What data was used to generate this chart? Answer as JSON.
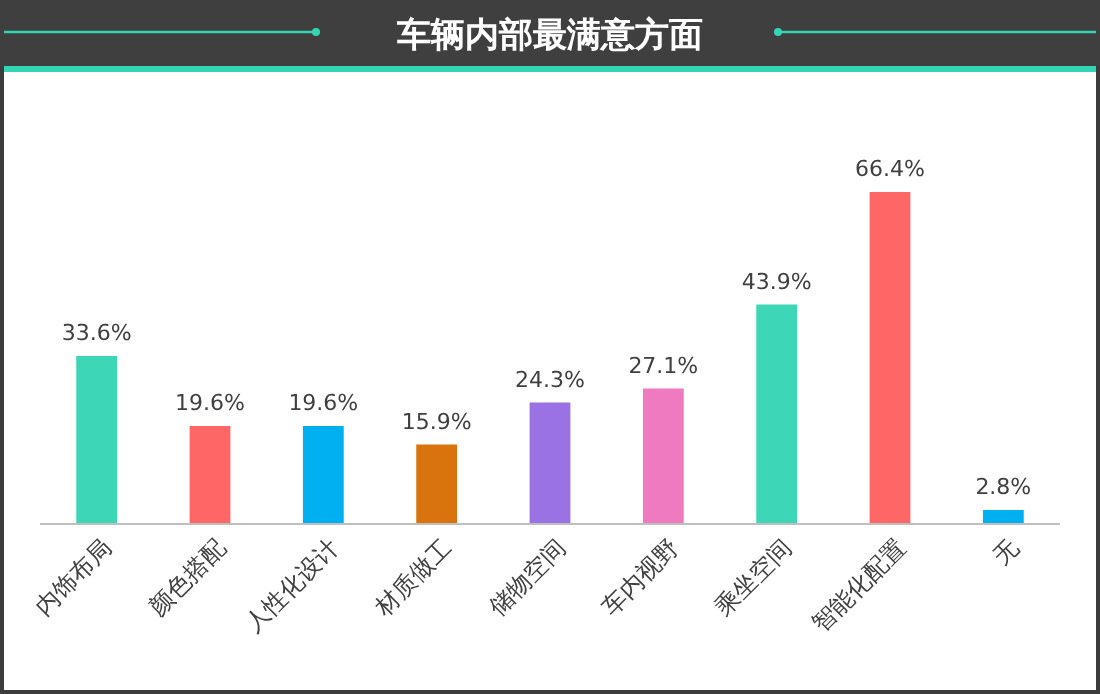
{
  "chart_data": {
    "type": "bar",
    "title": "车辆内部最满意方面",
    "categories": [
      "内饰布局",
      "颜色搭配",
      "人性化设计",
      "材质做工",
      "储物空间",
      "车内视野",
      "乘坐空间",
      "智能化配置",
      "无"
    ],
    "values": [
      33.6,
      19.6,
      19.6,
      15.9,
      24.3,
      27.1,
      43.9,
      66.4,
      2.8
    ],
    "colors": [
      "#3dd6b6",
      "#ff6666",
      "#00b0f0",
      "#d9730d",
      "#9b72e3",
      "#ef7ac0",
      "#3dd6b6",
      "#ff6666",
      "#00b0f0"
    ],
    "value_labels": [
      "33.6%",
      "19.6%",
      "19.6%",
      "15.9%",
      "24.3%",
      "27.1%",
      "43.9%",
      "66.4%",
      "2.8%"
    ]
  }
}
